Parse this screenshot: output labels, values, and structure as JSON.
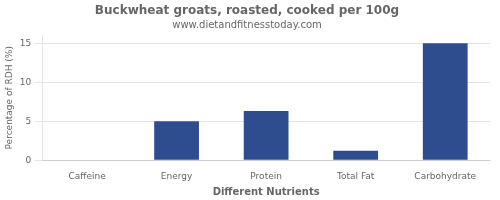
{
  "chart_data": {
    "type": "bar",
    "title": "Buckwheat groats, roasted, cooked per 100g",
    "subtitle": "www.dietandfitnesstoday.com",
    "xlabel": "Different Nutrients",
    "ylabel": "Percentage of RDH (%)",
    "categories": [
      "Caffeine",
      "Energy",
      "Protein",
      "Total Fat",
      "Carbohydrate"
    ],
    "values": [
      0,
      5.0,
      6.3,
      1.2,
      15.0
    ],
    "color": "#2e4d8e",
    "ylim": [
      0,
      16
    ],
    "yticks": [
      0,
      5,
      10,
      15
    ],
    "grid": true
  }
}
